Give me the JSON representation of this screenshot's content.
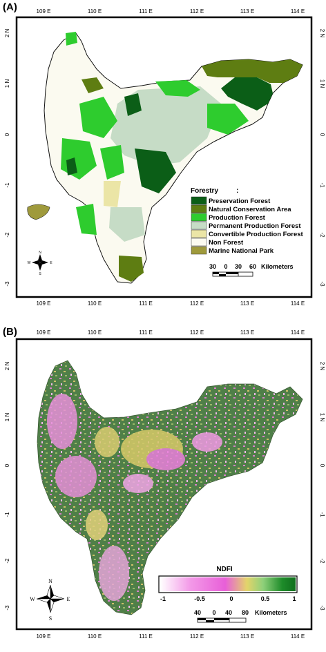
{
  "panels": [
    {
      "label": "(A)",
      "lon_ticks": [
        "109 E",
        "110 E",
        "111 E",
        "112 E",
        "113 E",
        "114 E"
      ],
      "lat_ticks": [
        "2 N",
        "1 N",
        "0",
        "-1",
        "-2",
        "-3"
      ],
      "legend": {
        "title": "Forestry",
        "colon": ":",
        "items": [
          {
            "label": "Preservation Forest",
            "color": "#0b5e17"
          },
          {
            "label": "Natural Conservation Area",
            "color": "#5e7d12"
          },
          {
            "label": "Production Forest",
            "color": "#2ecc2e"
          },
          {
            "label": "Permanent Production Forest",
            "color": "#c6dcc6"
          },
          {
            "label": "Convertible Production Forest",
            "color": "#ebe5a6"
          },
          {
            "label": "Non Forest",
            "color": "#fbfaf0"
          },
          {
            "label": "Marine National Park",
            "color": "#9f9a3c"
          }
        ]
      },
      "scale": {
        "ticks": [
          "30",
          "0",
          "30",
          "60"
        ],
        "unit": "Kilometers"
      },
      "compass": {
        "n": "N",
        "s": "S",
        "e": "E",
        "w": "W"
      }
    },
    {
      "label": "(B)",
      "lon_ticks": [
        "109 E",
        "110 E",
        "111 E",
        "112 E",
        "113 E",
        "114 E"
      ],
      "lat_ticks": [
        "2 N",
        "1 N",
        "0",
        "-1",
        "-2",
        "-3"
      ],
      "colorbar": {
        "title": "NDFI",
        "ticks": [
          "-1",
          "-0.5",
          "0",
          "0.5",
          "1"
        ],
        "colors": [
          "#ffffff",
          "#f39ae8",
          "#e85fd8",
          "#e3d46a",
          "#8ed07a",
          "#1e8c2a",
          "#0f6e1c"
        ]
      },
      "scale": {
        "ticks": [
          "40",
          "0",
          "40",
          "80"
        ],
        "unit": "Kilometers"
      },
      "compass": {
        "n": "N",
        "s": "S",
        "e": "E",
        "w": "W"
      }
    }
  ]
}
